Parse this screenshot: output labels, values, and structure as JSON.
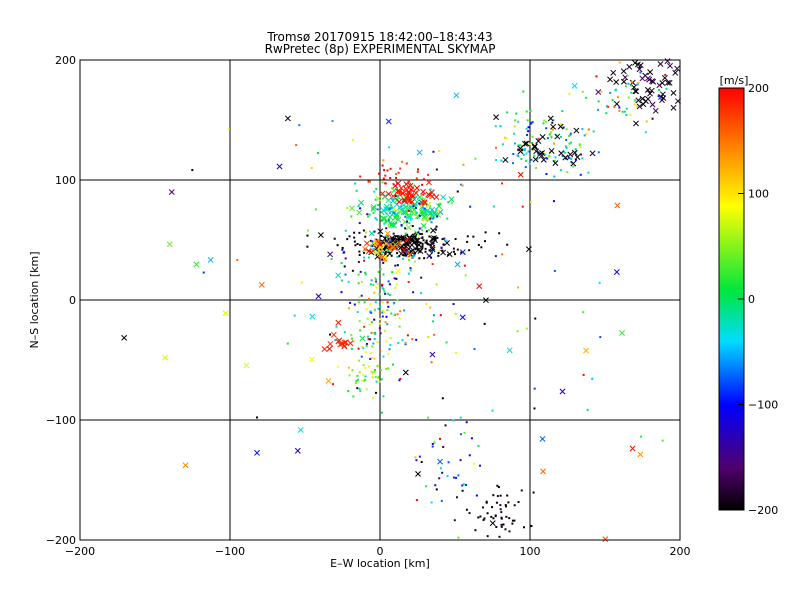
{
  "chart_data": {
    "type": "scatter",
    "title": "Tromsø 20170915 18:42:00–18:43:43",
    "subtitle": "RwPretec (8p) EXPERIMENTAL SKYMAP",
    "xlabel": "E–W location [km]",
    "ylabel": "N–S location [km]",
    "xlim": [
      -200,
      200
    ],
    "ylim": [
      -200,
      200
    ],
    "xticks": [
      -200,
      -100,
      0,
      100,
      200
    ],
    "yticks": [
      -200,
      -100,
      0,
      100,
      200
    ],
    "grid": true,
    "colorbar": {
      "label": "[m/s]",
      "min": -200,
      "max": 200,
      "ticks": [
        200,
        100,
        0,
        -100,
        -200
      ],
      "colormap": "rainbow-black-to-red"
    },
    "clusters": [
      {
        "cx": 18,
        "cy": 46,
        "sx": 22,
        "sy": 6,
        "n": 140,
        "v": -200,
        "vs": 8,
        "mark": "dot"
      },
      {
        "cx": 18,
        "cy": 46,
        "sx": 14,
        "sy": 5,
        "n": 70,
        "v": -200,
        "vs": 8,
        "mark": "x"
      },
      {
        "cx": 5,
        "cy": 44,
        "sx": 10,
        "sy": 5,
        "n": 30,
        "v": 150,
        "vs": 40,
        "mark": "x"
      },
      {
        "cx": 18,
        "cy": 74,
        "sx": 13,
        "sy": 7,
        "n": 90,
        "v": 0,
        "vs": 25,
        "mark": "x"
      },
      {
        "cx": 15,
        "cy": 76,
        "sx": 16,
        "sy": 9,
        "n": 90,
        "v": -30,
        "vs": 60,
        "mark": "dot"
      },
      {
        "cx": 18,
        "cy": 90,
        "sx": 8,
        "sy": 4,
        "n": 40,
        "v": 195,
        "vs": 10,
        "mark": "x"
      },
      {
        "cx": 8,
        "cy": 103,
        "sx": 12,
        "sy": 6,
        "n": 25,
        "v": 190,
        "vs": 15,
        "mark": "dot"
      },
      {
        "cx": 5,
        "cy": 30,
        "sx": 18,
        "sy": 18,
        "n": 80,
        "v": -50,
        "vs": 90,
        "mark": "dot"
      },
      {
        "cx": 0,
        "cy": -20,
        "sx": 12,
        "sy": 25,
        "n": 110,
        "v": 20,
        "vs": 90,
        "mark": "dot"
      },
      {
        "cx": -8,
        "cy": -63,
        "sx": 8,
        "sy": 6,
        "n": 40,
        "v": 40,
        "vs": 30,
        "mark": "dot"
      },
      {
        "cx": -28,
        "cy": -35,
        "sx": 4,
        "sy": 4,
        "n": 14,
        "v": 190,
        "vs": 10,
        "mark": "x"
      },
      {
        "cx": 110,
        "cy": 130,
        "sx": 16,
        "sy": 14,
        "n": 120,
        "v": -10,
        "vs": 60,
        "mark": "dot"
      },
      {
        "cx": 112,
        "cy": 128,
        "sx": 12,
        "sy": 10,
        "n": 30,
        "v": -200,
        "vs": 10,
        "mark": "x"
      },
      {
        "cx": 180,
        "cy": 178,
        "sx": 14,
        "sy": 12,
        "n": 60,
        "v": -190,
        "vs": 15,
        "mark": "x"
      },
      {
        "cx": 160,
        "cy": 170,
        "sx": 18,
        "sy": 15,
        "n": 50,
        "v": 30,
        "vs": 80,
        "mark": "dot"
      },
      {
        "cx": 80,
        "cy": -180,
        "sx": 12,
        "sy": 12,
        "n": 50,
        "v": -200,
        "vs": 10,
        "mark": "dot"
      },
      {
        "cx": 45,
        "cy": -140,
        "sx": 12,
        "sy": 25,
        "n": 40,
        "v": -80,
        "vs": 70,
        "mark": "dot"
      },
      {
        "cx": 30,
        "cy": 20,
        "sx": 60,
        "sy": 100,
        "n": 120,
        "v": 0,
        "vs": 150,
        "mark": "dot"
      },
      {
        "cx": 0,
        "cy": 0,
        "sx": 110,
        "sy": 110,
        "n": 60,
        "v": 0,
        "vs": 150,
        "mark": "x"
      }
    ]
  }
}
